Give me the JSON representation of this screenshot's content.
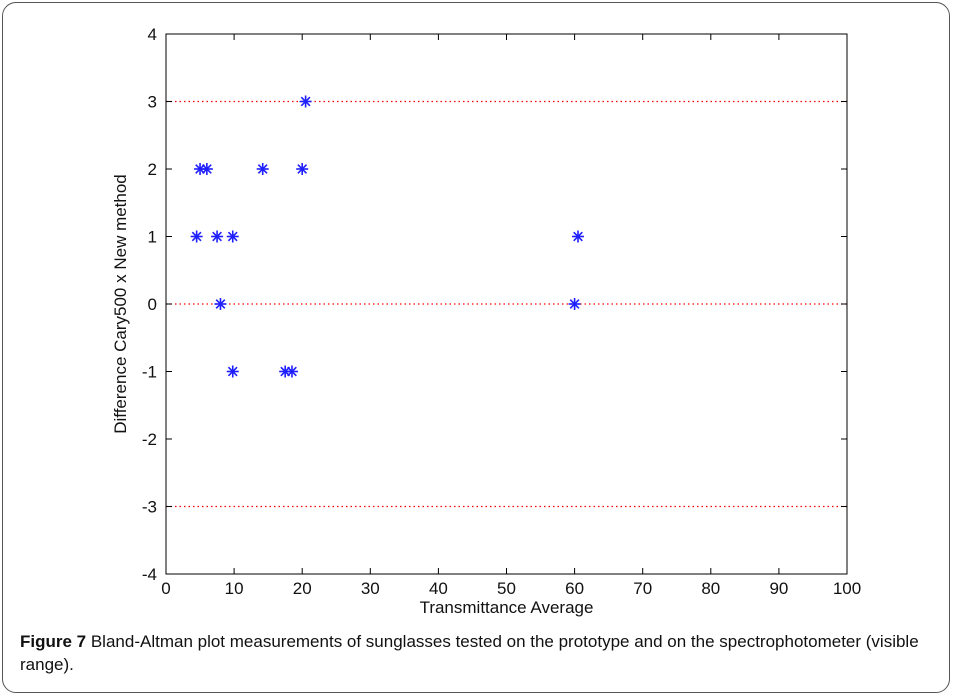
{
  "caption": {
    "label": "Figure 7",
    "text": " Bland-Altman plot measurements of sunglasses tested on the prototype and on the spectrophotometer (visible range)."
  },
  "chart_data": {
    "type": "scatter",
    "title": "",
    "xlabel": "Transmittance Average",
    "ylabel": "Difference Cary500 x New method",
    "xlim": [
      0,
      100
    ],
    "ylim": [
      -4,
      4
    ],
    "xticks": [
      "0",
      "10",
      "20",
      "30",
      "40",
      "50",
      "60",
      "70",
      "80",
      "90",
      "100"
    ],
    "yticks": [
      "-4",
      "-3",
      "-2",
      "-1",
      "0",
      "1",
      "2",
      "3",
      "4"
    ],
    "marker": "asterisk",
    "marker_color": "#1f1fff",
    "reference_line_color": "#ff0000",
    "reference_lines": [
      3,
      0,
      -3
    ],
    "series": [
      {
        "points": [
          {
            "x": 4.5,
            "y": 1
          },
          {
            "x": 7.5,
            "y": 1
          },
          {
            "x": 9.8,
            "y": 1
          },
          {
            "x": 60.5,
            "y": 1
          },
          {
            "x": 5.0,
            "y": 2
          },
          {
            "x": 6.0,
            "y": 2
          },
          {
            "x": 14.2,
            "y": 2
          },
          {
            "x": 20.0,
            "y": 2
          },
          {
            "x": 20.5,
            "y": 3
          },
          {
            "x": 8.0,
            "y": 0
          },
          {
            "x": 60.0,
            "y": 0
          },
          {
            "x": 9.8,
            "y": -1
          },
          {
            "x": 17.5,
            "y": -1
          },
          {
            "x": 18.5,
            "y": -1
          }
        ]
      }
    ]
  }
}
